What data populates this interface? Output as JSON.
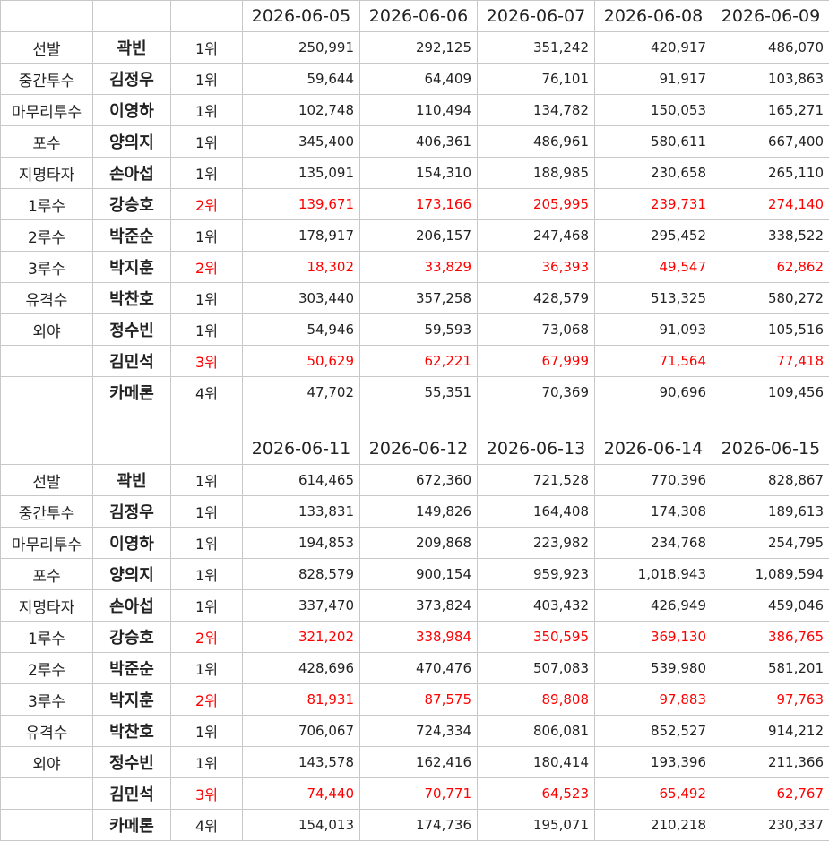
{
  "tables": [
    {
      "dates": [
        "2026-06-05",
        "2026-06-06",
        "2026-06-07",
        "2026-06-08",
        "2026-06-09"
      ],
      "rows": [
        {
          "position": "선발",
          "name": "곽빈",
          "rank": "1위",
          "values": [
            "250,991",
            "292,125",
            "351,242",
            "420,917",
            "486,070"
          ]
        },
        {
          "position": "중간투수",
          "name": "김정우",
          "rank": "1위",
          "values": [
            "59,644",
            "64,409",
            "76,101",
            "91,917",
            "103,863"
          ]
        },
        {
          "position": "마무리투수",
          "name": "이영하",
          "rank": "1위",
          "values": [
            "102,748",
            "110,494",
            "134,782",
            "150,053",
            "165,271"
          ]
        },
        {
          "position": "포수",
          "name": "양의지",
          "rank": "1위",
          "values": [
            "345,400",
            "406,361",
            "486,961",
            "580,611",
            "667,400"
          ]
        },
        {
          "position": "지명타자",
          "name": "손아섭",
          "rank": "1위",
          "values": [
            "135,091",
            "154,310",
            "188,985",
            "230,658",
            "265,110"
          ]
        },
        {
          "position": "1루수",
          "name": "강승호",
          "rank": "2위",
          "color": "#ff0000",
          "values": [
            "139,671",
            "173,166",
            "205,995",
            "239,731",
            "274,140"
          ]
        },
        {
          "position": "2루수",
          "name": "박준순",
          "rank": "1위",
          "values": [
            "178,917",
            "206,157",
            "247,468",
            "295,452",
            "338,522"
          ]
        },
        {
          "position": "3루수",
          "name": "박지훈",
          "rank": "2위",
          "color": "#ff0000",
          "values": [
            "18,302",
            "33,829",
            "36,393",
            "49,547",
            "62,862"
          ]
        },
        {
          "position": "유격수",
          "name": "박찬호",
          "rank": "1위",
          "values": [
            "303,440",
            "357,258",
            "428,579",
            "513,325",
            "580,272"
          ]
        },
        {
          "position": "외야",
          "name": "정수빈",
          "rank": "1위",
          "values": [
            "54,946",
            "59,593",
            "73,068",
            "91,093",
            "105,516"
          ]
        },
        {
          "position": null,
          "name": "김민석",
          "rank": "3위",
          "color": "#ff0000",
          "values": [
            "50,629",
            "62,221",
            "67,999",
            "71,564",
            "77,418"
          ]
        },
        {
          "position": null,
          "name": "카메론",
          "rank": "4위",
          "values": [
            "47,702",
            "55,351",
            "70,369",
            "90,696",
            "109,456"
          ]
        }
      ]
    },
    {
      "dates": [
        "2026-06-11",
        "2026-06-12",
        "2026-06-13",
        "2026-06-14",
        "2026-06-15"
      ],
      "rows": [
        {
          "position": "선발",
          "name": "곽빈",
          "rank": "1위",
          "values": [
            "614,465",
            "672,360",
            "721,528",
            "770,396",
            "828,867"
          ]
        },
        {
          "position": "중간투수",
          "name": "김정우",
          "rank": "1위",
          "values": [
            "133,831",
            "149,826",
            "164,408",
            "174,308",
            "189,613"
          ]
        },
        {
          "position": "마무리투수",
          "name": "이영하",
          "rank": "1위",
          "values": [
            "194,853",
            "209,868",
            "223,982",
            "234,768",
            "254,795"
          ]
        },
        {
          "position": "포수",
          "name": "양의지",
          "rank": "1위",
          "values": [
            "828,579",
            "900,154",
            "959,923",
            "1,018,943",
            "1,089,594"
          ]
        },
        {
          "position": "지명타자",
          "name": "손아섭",
          "rank": "1위",
          "values": [
            "337,470",
            "373,824",
            "403,432",
            "426,949",
            "459,046"
          ]
        },
        {
          "position": "1루수",
          "name": "강승호",
          "rank": "2위",
          "color": "#ff0000",
          "values": [
            "321,202",
            "338,984",
            "350,595",
            "369,130",
            "386,765"
          ]
        },
        {
          "position": "2루수",
          "name": "박준순",
          "rank": "1위",
          "values": [
            "428,696",
            "470,476",
            "507,083",
            "539,980",
            "581,201"
          ]
        },
        {
          "position": "3루수",
          "name": "박지훈",
          "rank": "2위",
          "color": "#ff0000",
          "values": [
            "81,931",
            "87,575",
            "89,808",
            "97,883",
            "97,763"
          ]
        },
        {
          "position": "유격수",
          "name": "박찬호",
          "rank": "1위",
          "values": [
            "706,067",
            "724,334",
            "806,081",
            "852,527",
            "914,212"
          ]
        },
        {
          "position": "외야",
          "name": "정수빈",
          "rank": "1위",
          "values": [
            "143,578",
            "162,416",
            "180,414",
            "193,396",
            "211,366"
          ]
        },
        {
          "position": null,
          "name": "김민석",
          "rank": "3위",
          "color": "#ff0000",
          "values": [
            "74,440",
            "70,771",
            "64,523",
            "65,492",
            "62,767"
          ]
        },
        {
          "position": null,
          "name": "카메론",
          "rank": "4위",
          "values": [
            "154,013",
            "174,736",
            "195,071",
            "210,218",
            "230,337"
          ]
        }
      ]
    }
  ]
}
